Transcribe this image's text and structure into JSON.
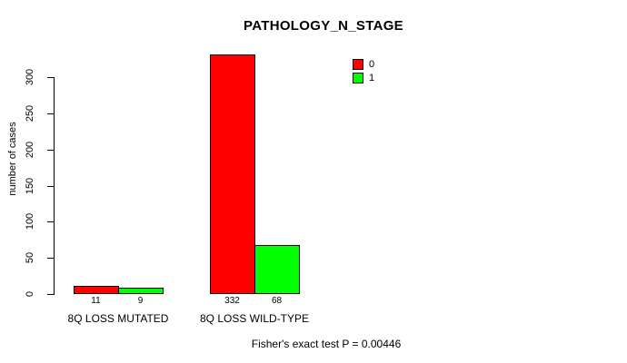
{
  "chart_data": {
    "type": "bar",
    "title": "PATHOLOGY_N_STAGE",
    "xlabel": "",
    "ylabel": "number of cases",
    "ylim": [
      0,
      300
    ],
    "yticks": [
      0,
      50,
      100,
      150,
      200,
      250,
      300
    ],
    "grid": false,
    "categories": [
      "8Q LOSS MUTATED",
      "8Q LOSS WILD-TYPE"
    ],
    "series": [
      {
        "name": "0",
        "color": "#FF0000",
        "values": [
          11,
          332
        ]
      },
      {
        "name": "1",
        "color": "#00FF00",
        "values": [
          9,
          68
        ]
      }
    ],
    "bar_value_labels": [
      [
        11,
        9
      ],
      [
        332,
        68
      ]
    ],
    "legend_position": "top-right",
    "annotation": "Fisher's exact test P = 0.00446"
  },
  "legend": {
    "items": [
      {
        "label": "0",
        "color": "#FF0000"
      },
      {
        "label": "1",
        "color": "#00FF00"
      }
    ]
  },
  "footer": {
    "text": "Fisher's exact test P = 0.00446"
  }
}
